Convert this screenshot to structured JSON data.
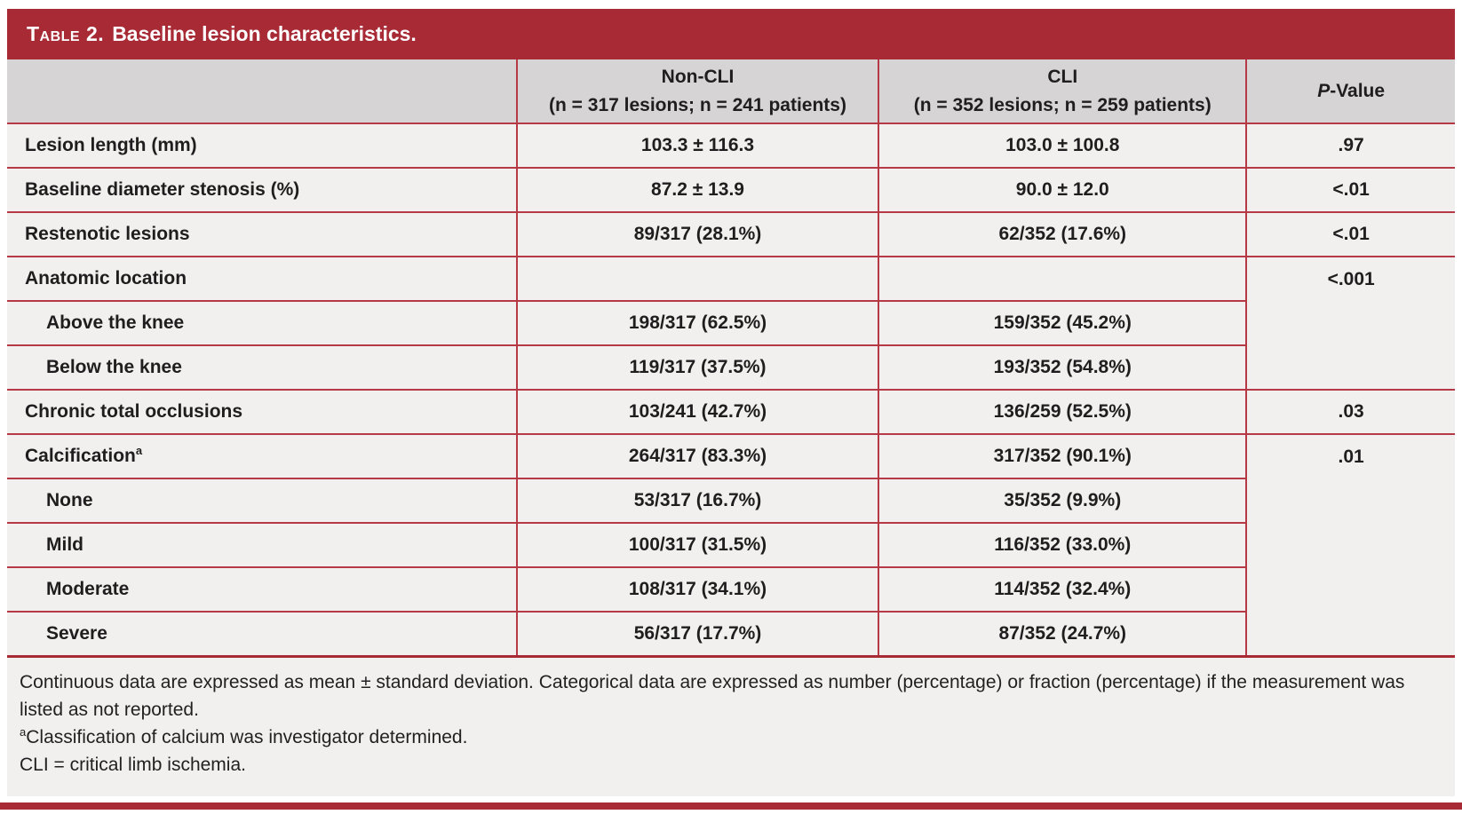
{
  "title_bar": {
    "label": "Table 2.",
    "title": "Baseline lesion characteristics."
  },
  "colors": {
    "accent_red": "#a72a35",
    "rule_red": "#b53a46",
    "header_gray": "#d6d4d5",
    "row_bg": "#f2f0ef",
    "text": "#1f1d1e"
  },
  "columns": {
    "label_col": "",
    "noncli": {
      "line1": "Non-CLI",
      "line2": "(n = 317 lesions; n = 241 patients)"
    },
    "cli": {
      "line1": "CLI",
      "line2": "(n = 352 lesions; n = 259 patients)"
    },
    "pvalue": {
      "italic": "P",
      "rest": "-Value"
    }
  },
  "rows": [
    {
      "label": "Lesion length (mm)",
      "noncli": "103.3 ± 116.3",
      "cli": "103.0 ± 100.8",
      "p": ".97"
    },
    {
      "label": "Baseline diameter stenosis (%)",
      "noncli": "87.2 ± 13.9",
      "cli": "90.0 ± 12.0",
      "p": "<.01"
    },
    {
      "label": "Restenotic lesions",
      "noncli": "89/317 (28.1%)",
      "cli": "62/352 (17.6%)",
      "p": "<.01"
    },
    {
      "label": "Anatomic location",
      "noncli": "",
      "cli": "",
      "p": "<.001"
    },
    {
      "label": "Above the knee",
      "noncli": "198/317 (62.5%)",
      "cli": "159/352 (45.2%)"
    },
    {
      "label": "Below the knee",
      "noncli": "119/317 (37.5%)",
      "cli": "193/352 (54.8%)"
    },
    {
      "label": "Chronic total occlusions",
      "noncli": "103/241 (42.7%)",
      "cli": "136/259 (52.5%)",
      "p": ".03"
    },
    {
      "label": "Calcification",
      "sup": "a",
      "noncli": "264/317 (83.3%)",
      "cli": "317/352 (90.1%)",
      "p": ".01"
    },
    {
      "label": "None",
      "noncli": "53/317 (16.7%)",
      "cli": "35/352 (9.9%)"
    },
    {
      "label": "Mild",
      "noncli": "100/317 (31.5%)",
      "cli": "116/352 (33.0%)"
    },
    {
      "label": "Moderate",
      "noncli": "108/317 (34.1%)",
      "cli": "114/352 (32.4%)"
    },
    {
      "label": "Severe",
      "noncli": "56/317 (17.7%)",
      "cli": "87/352 (24.7%)"
    }
  ],
  "footnotes": {
    "note1": "Continuous data are expressed as mean ± standard deviation. Categorical data are expressed as number (percentage) or fraction (percentage) if the measurement was listed as not reported.",
    "note2_sup": "a",
    "note2": "Classification of calcium was investigator determined.",
    "note3": "CLI = critical limb ischemia."
  }
}
